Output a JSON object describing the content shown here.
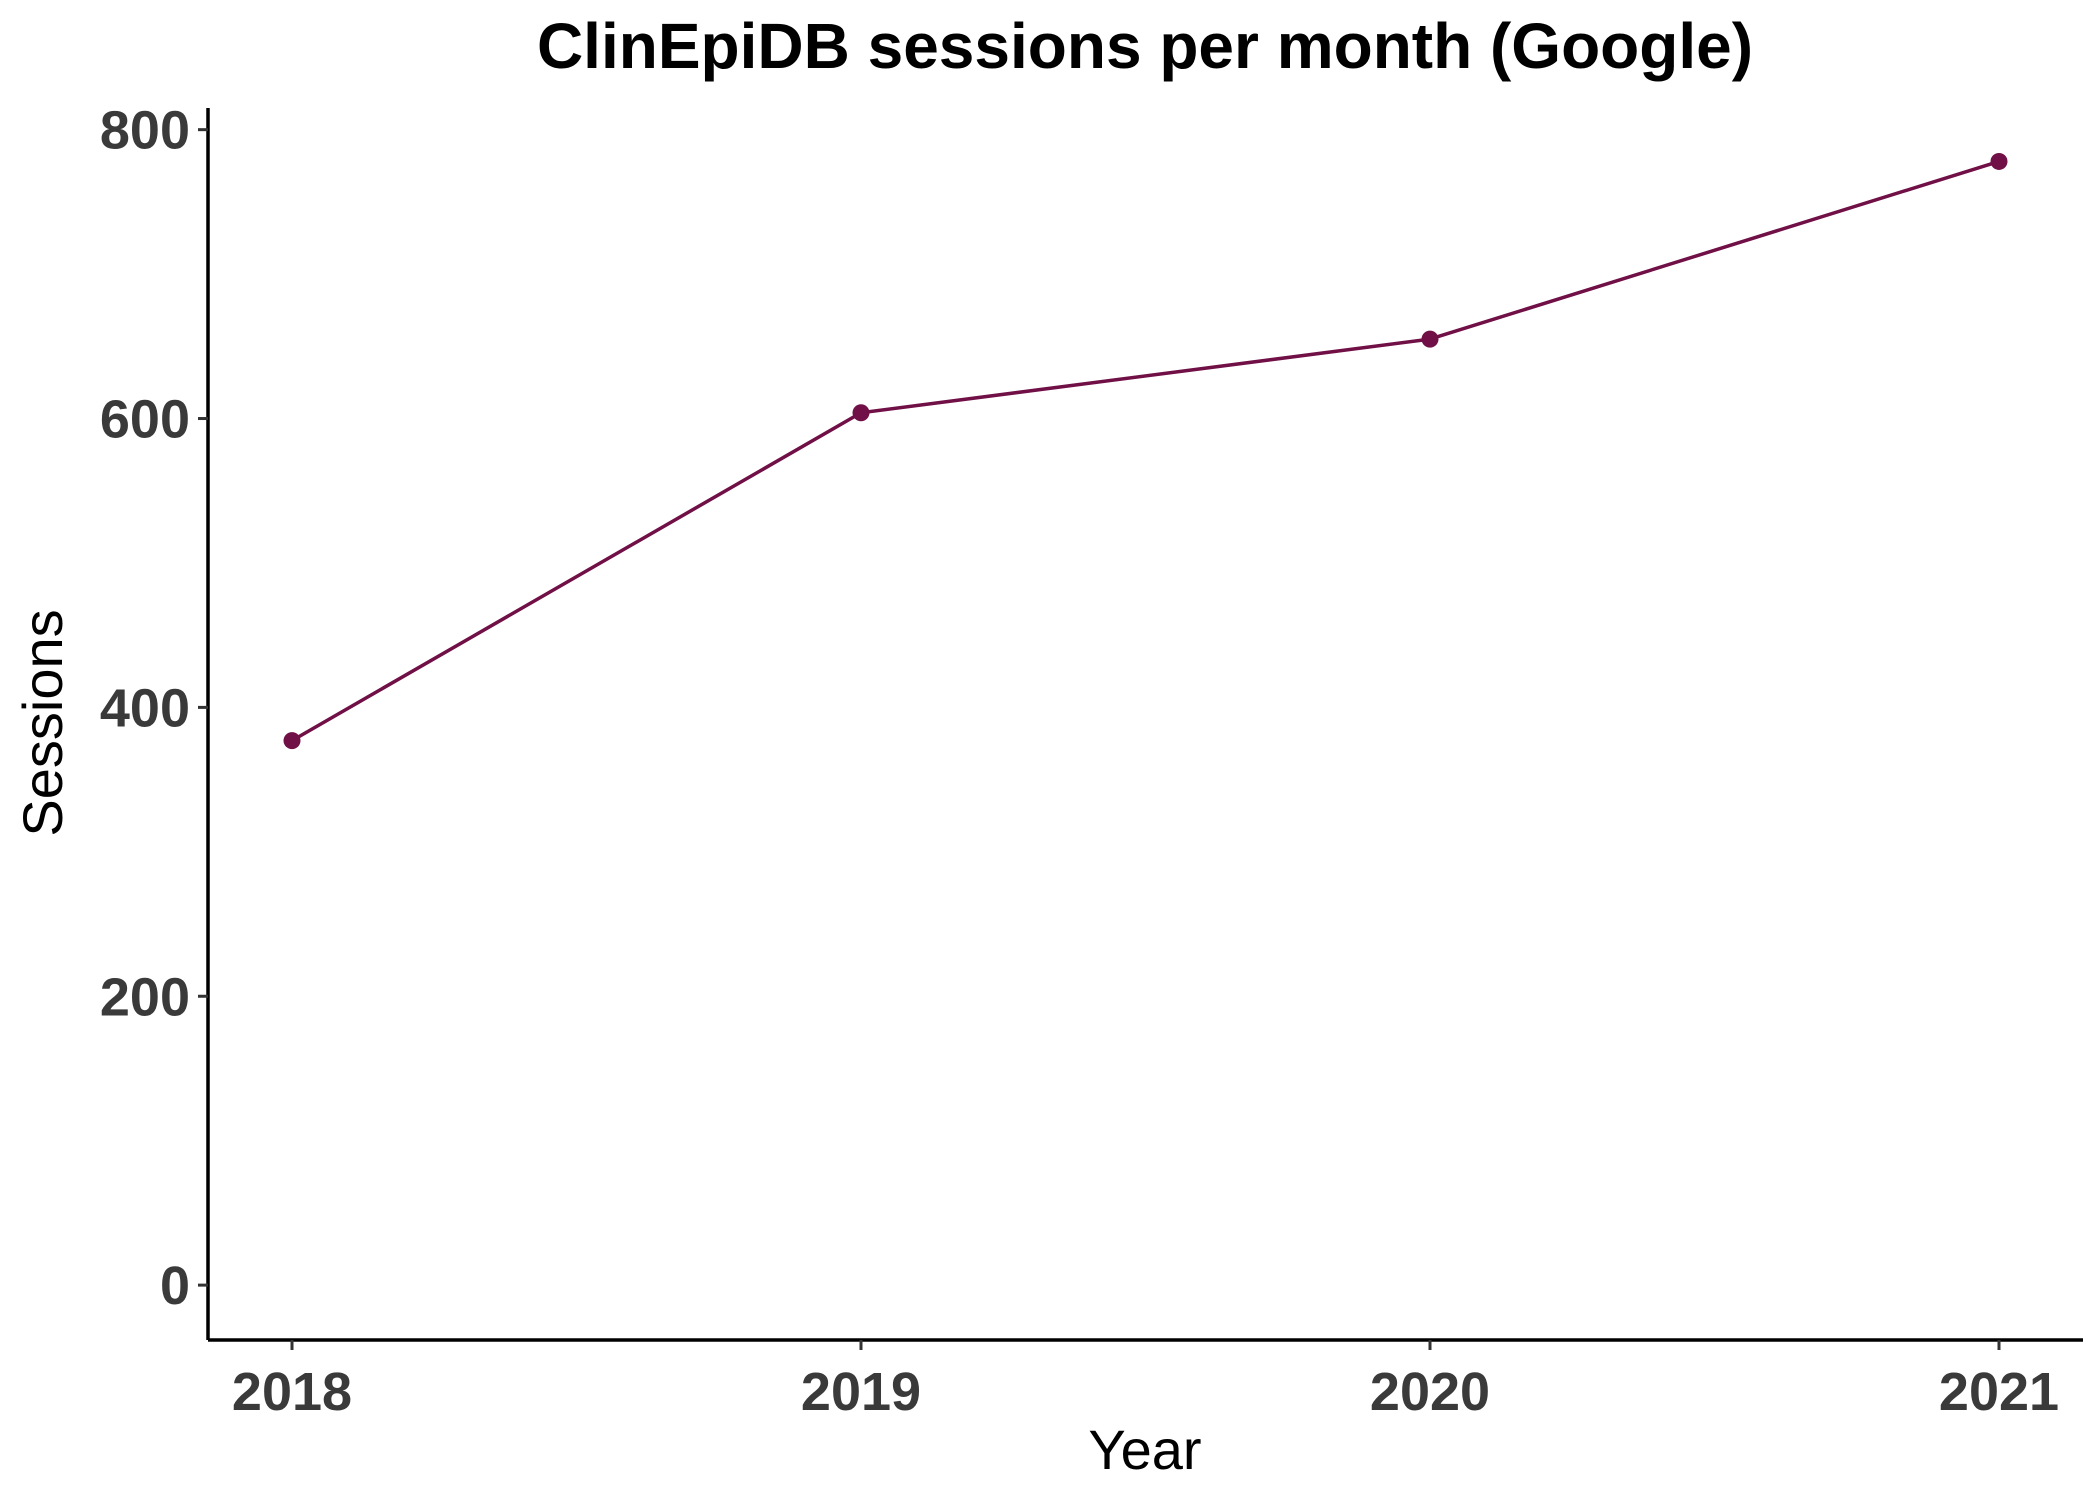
{
  "chart_data": {
    "type": "line",
    "title": "ClinEpiDB sessions per month (Google)",
    "xlabel": "Year",
    "ylabel": "Sessions",
    "categories": [
      "2018",
      "2019",
      "2020",
      "2021"
    ],
    "series": [
      {
        "values": [
          377,
          604,
          655,
          778
        ],
        "color": "#701046"
      }
    ],
    "ylim": [
      -38,
      815
    ],
    "yticks": [
      0,
      200,
      400,
      600,
      800
    ],
    "grid": false,
    "legend": "none"
  }
}
